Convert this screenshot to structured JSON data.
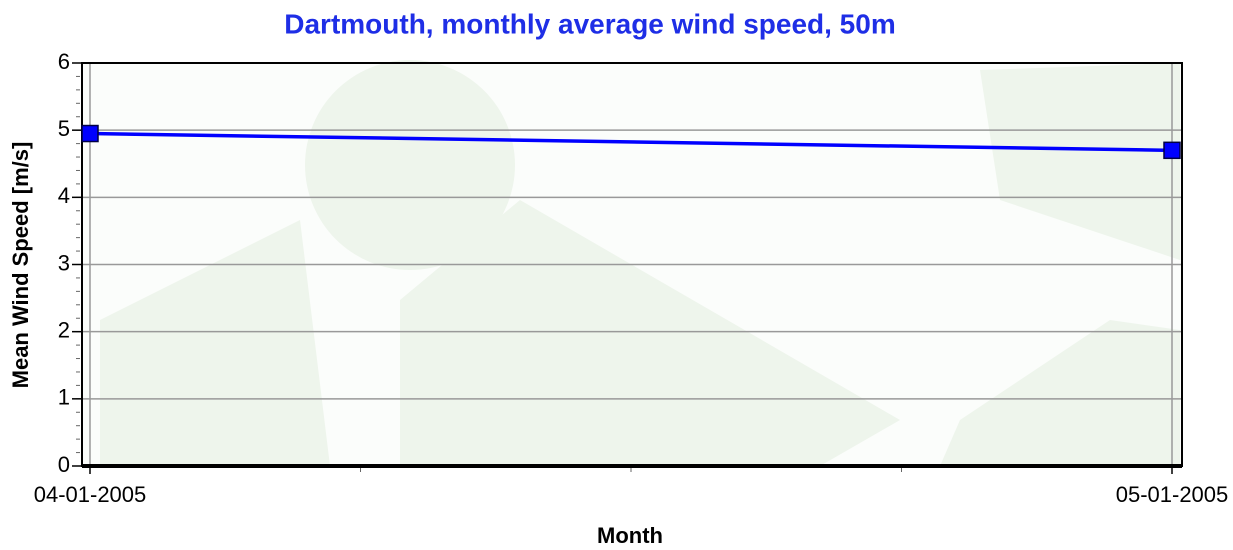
{
  "chart_data": {
    "type": "line",
    "title": "Dartmouth, monthly average wind speed, 50m",
    "x_label": "Month",
    "y_label": "Mean Wind Speed [m/s]",
    "categories": [
      "04-01-2005",
      "05-01-2005"
    ],
    "values": [
      4.95,
      4.7
    ],
    "color": "#0000ff",
    "ylim": [
      0,
      6
    ],
    "yticks": [
      0,
      1,
      2,
      3,
      4,
      5,
      6
    ],
    "grid": true
  }
}
